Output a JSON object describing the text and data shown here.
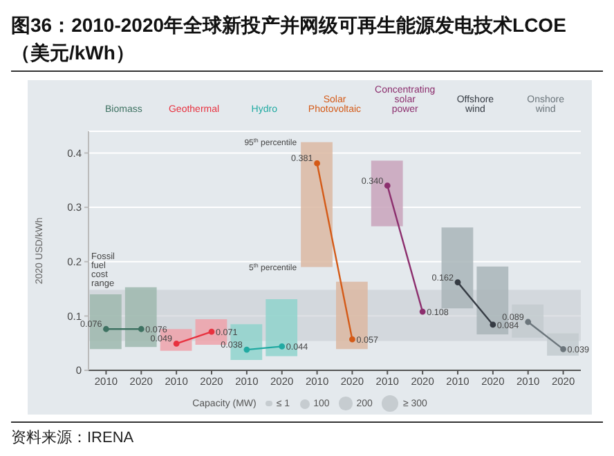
{
  "chart_data": {
    "type": "bar",
    "title": "图36：2010-2020年全球新投产并网级可再生能源发电技术LCOE（美元/kWh）",
    "categories": [
      "2010",
      "2020",
      "2010",
      "2020",
      "2010",
      "2020",
      "2010",
      "2020",
      "2010",
      "2020",
      "2010",
      "2020",
      "2010",
      "2020"
    ],
    "series": [
      {
        "type": "bar",
        "base": [
          0.039,
          0.043,
          0.036,
          0.047,
          0.019,
          0.026,
          0.19,
          0.039,
          0.265,
          null,
          0.114,
          0.066,
          0.06,
          0.027
        ],
        "values": [
          0.101,
          0.11,
          0.04,
          0.047,
          0.066,
          0.105,
          0.23,
          0.124,
          0.121,
          null,
          0.149,
          0.125,
          0.061,
          0.041
        ],
        "colors": [
          "#9db8ae",
          "#9db8ae",
          "#eea2aa",
          "#eea2aa",
          "#8fd3cd",
          "#8fd3cd",
          "#dcb8a2",
          "#dcb8a2",
          "#c9a3bb",
          "#c9a3bb",
          "#a9b5b9",
          "#a9b5b9",
          "#c3cbcf",
          "#c3cbcf"
        ]
      },
      {
        "type": "line",
        "name": "Biomass",
        "color": "#3e7262",
        "values": [
          0.076,
          0.076,
          null,
          null,
          null,
          null,
          null,
          null,
          null,
          null,
          null,
          null,
          null,
          null
        ],
        "value_labels": [
          "0.076",
          "0.076",
          null,
          null,
          null,
          null,
          null,
          null,
          null,
          null,
          null,
          null,
          null,
          null
        ]
      },
      {
        "type": "line",
        "name": "Geothermal",
        "color": "#e8313f",
        "values": [
          null,
          null,
          0.049,
          0.071,
          null,
          null,
          null,
          null,
          null,
          null,
          null,
          null,
          null,
          null
        ],
        "value_labels": [
          null,
          null,
          "0.049",
          "0.071",
          null,
          null,
          null,
          null,
          null,
          null,
          null,
          null,
          null,
          null
        ]
      },
      {
        "type": "line",
        "name": "Hydro",
        "color": "#21aaa2",
        "values": [
          null,
          null,
          null,
          null,
          0.038,
          0.044,
          null,
          null,
          null,
          null,
          null,
          null,
          null,
          null
        ],
        "value_labels": [
          null,
          null,
          null,
          null,
          "0.038",
          "0.044",
          null,
          null,
          null,
          null,
          null,
          null,
          null,
          null
        ]
      },
      {
        "type": "line",
        "name": "Solar Photovoltaic",
        "color": "#d45a17",
        "values": [
          null,
          null,
          null,
          null,
          null,
          null,
          0.381,
          0.057,
          null,
          null,
          null,
          null,
          null,
          null
        ],
        "value_labels": [
          null,
          null,
          null,
          null,
          null,
          null,
          "0.381",
          "0.057",
          null,
          null,
          null,
          null,
          null,
          null
        ]
      },
      {
        "type": "line",
        "name": "Concentrating solar power",
        "color": "#8c2f6e",
        "values": [
          null,
          null,
          null,
          null,
          null,
          null,
          null,
          null,
          0.34,
          0.108,
          null,
          null,
          null,
          null
        ],
        "value_labels": [
          null,
          null,
          null,
          null,
          null,
          null,
          null,
          null,
          "0.340",
          "0.108",
          null,
          null,
          null,
          null
        ]
      },
      {
        "type": "line",
        "name": "Offshore wind",
        "color": "#363c44",
        "values": [
          null,
          null,
          null,
          null,
          null,
          null,
          null,
          null,
          null,
          null,
          0.162,
          0.084,
          null,
          null
        ],
        "value_labels": [
          null,
          null,
          null,
          null,
          null,
          null,
          null,
          null,
          null,
          null,
          "0.162",
          "0.084",
          null,
          null
        ]
      },
      {
        "type": "line",
        "name": "Onshore wind",
        "color": "#6b757b",
        "values": [
          null,
          null,
          null,
          null,
          null,
          null,
          null,
          null,
          null,
          null,
          null,
          null,
          0.089,
          0.039
        ],
        "value_labels": [
          null,
          null,
          null,
          null,
          null,
          null,
          null,
          null,
          null,
          null,
          null,
          null,
          "0.089",
          "0.039"
        ]
      }
    ],
    "ylabel": "2020 USD/kWh",
    "ylim": [
      0,
      0.44
    ],
    "yticks": [
      0,
      0.1,
      0.2,
      0.3,
      0.4
    ],
    "grid": "y",
    "marker": "circle",
    "bands": [
      {
        "axis": "y",
        "from": 0.054,
        "to": 0.148,
        "label": "Fossil fuel cost range",
        "color": "#c4cbcf"
      }
    ],
    "annotations": [
      "95$^{th}$ percentile",
      "5$^{th}$ percentile",
      "Capacity (MW)",
      "≤ 1",
      "100",
      "200",
      "≥ 300",
      "资料来源：IRENA"
    ]
  }
}
